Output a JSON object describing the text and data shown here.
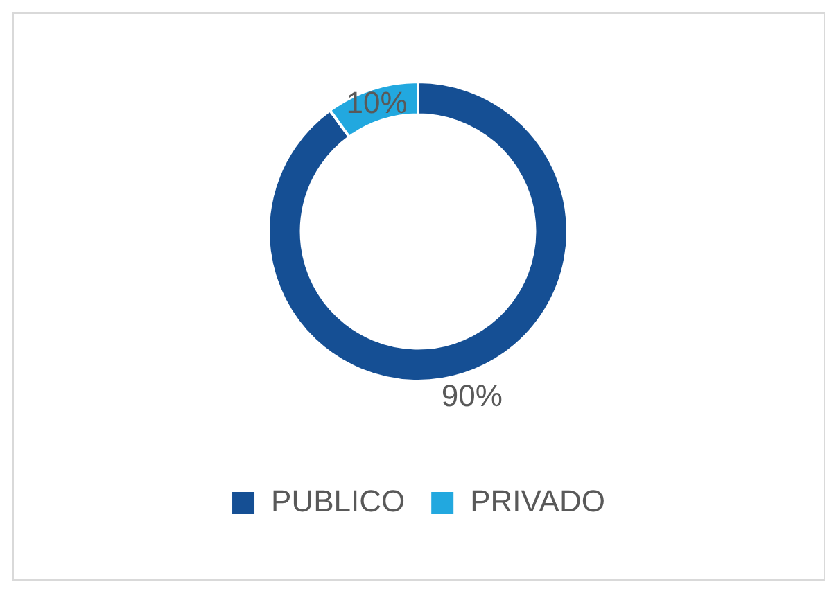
{
  "chart_data": {
    "type": "donut",
    "categories": [
      "PUBLICO",
      "PRIVADO"
    ],
    "values": [
      90,
      10
    ],
    "colors": [
      "#154f94",
      "#22a8df"
    ],
    "value_labels": [
      "90%",
      "10%"
    ],
    "legend": "bottom"
  }
}
